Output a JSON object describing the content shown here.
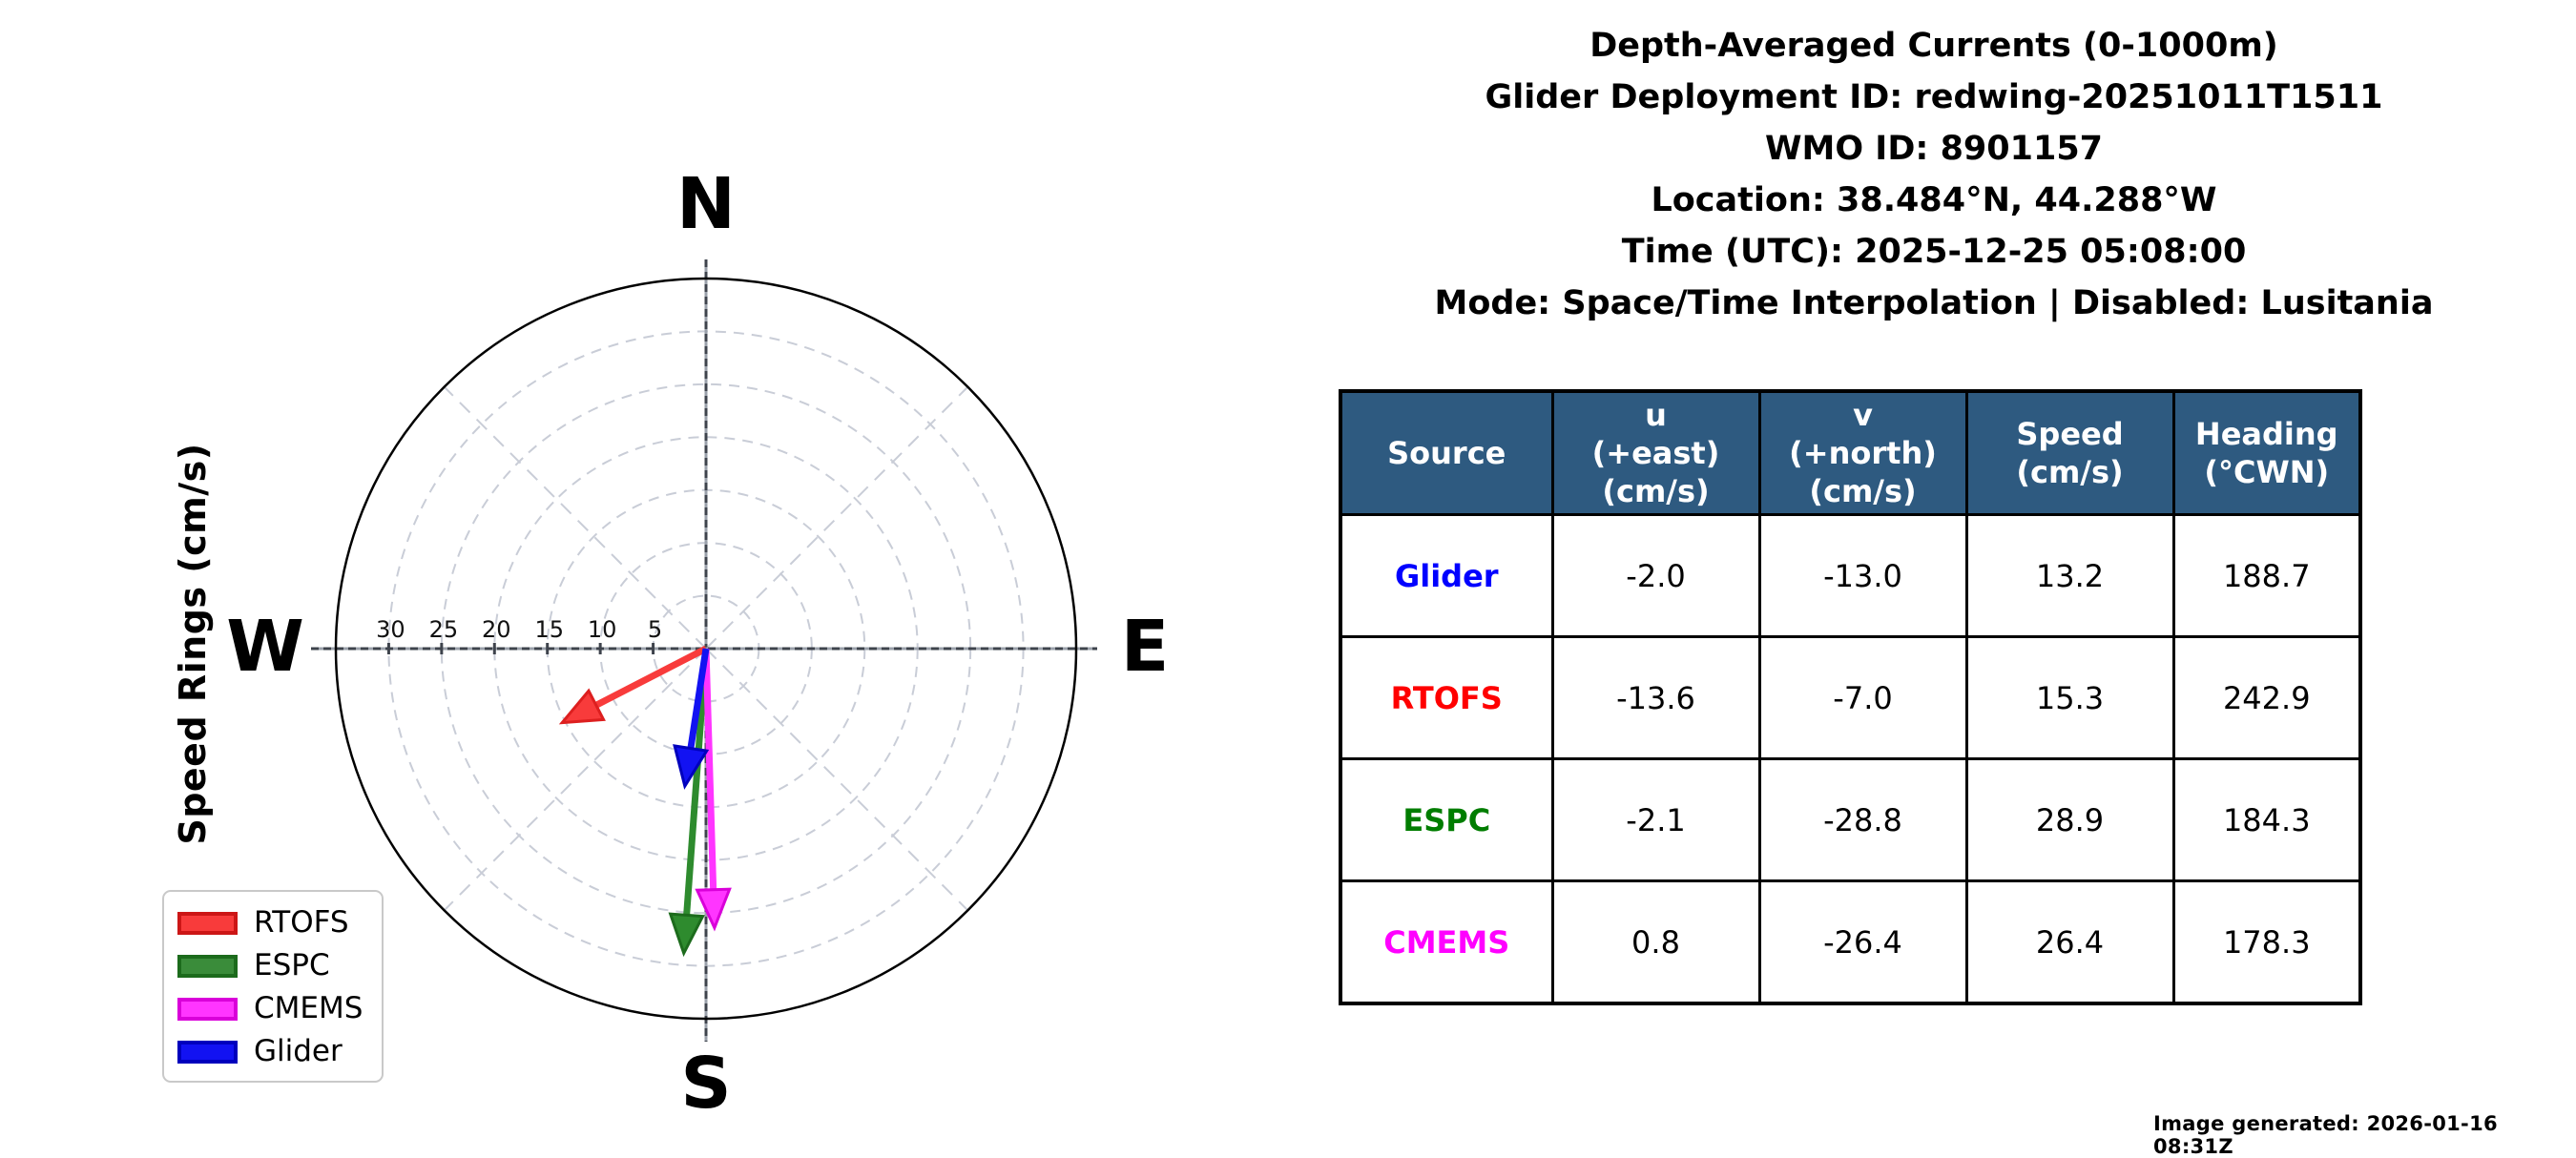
{
  "title": {
    "lines": [
      "Depth-Averaged Currents (0-1000m)",
      "Glider Deployment ID: redwing-20251011T1511",
      "WMO ID: 8901157",
      "Location: 38.484°N, 44.288°W",
      "Time (UTC): 2025-12-25 05:08:00",
      "Mode: Space/Time Interpolation | Disabled: Lusitania"
    ]
  },
  "chart_data": {
    "type": "quiver_polar",
    "axis_label": "Speed Rings (cm/s)",
    "compass_labels": {
      "north": "N",
      "east": "E",
      "south": "S",
      "west": "W"
    },
    "ring_values": [
      5,
      10,
      15,
      20,
      25,
      30
    ],
    "ring_labels": [
      "30",
      "25",
      "20",
      "15",
      "10",
      "5"
    ],
    "rmax": 35,
    "units": "cm/s",
    "series": [
      {
        "name": "RTOFS",
        "u": -13.6,
        "v": -7.0,
        "speed": 15.3,
        "heading_cwn": 242.9,
        "color": "#f83b3b",
        "edge": "#dd1f1f"
      },
      {
        "name": "ESPC",
        "u": -2.1,
        "v": -28.8,
        "speed": 28.9,
        "heading_cwn": 184.3,
        "color": "#2e8b2e",
        "edge": "#1c6b1c"
      },
      {
        "name": "CMEMS",
        "u": 0.8,
        "v": -26.4,
        "speed": 26.4,
        "heading_cwn": 178.3,
        "color": "#ff35ff",
        "edge": "#d900d9"
      },
      {
        "name": "Glider",
        "u": -2.0,
        "v": -13.0,
        "speed": 13.2,
        "heading_cwn": 188.7,
        "color": "#1212f2",
        "edge": "#0000bd"
      }
    ],
    "legend": [
      {
        "label": "RTOFS",
        "color": "#f83b3b",
        "edge": "#cc1616"
      },
      {
        "label": "ESPC",
        "color": "#3a8c3a",
        "edge": "#1c6b1c"
      },
      {
        "label": "CMEMS",
        "color": "#ff35ff",
        "edge": "#d900d9"
      },
      {
        "label": "Glider",
        "color": "#1212f2",
        "edge": "#0000bd"
      }
    ],
    "grid_color": "#c9cdd7",
    "axis_color": "#3e434c"
  },
  "table": {
    "header_bg": "#2e5a80",
    "header_fg": "#ffffff",
    "columns": [
      "Source",
      "u\n(+east)\n(cm/s)",
      "v\n(+north)\n(cm/s)",
      "Speed\n(cm/s)",
      "Heading\n(°CWN)"
    ],
    "rows": [
      {
        "source": "Glider",
        "color": "#0000ff",
        "u": "-2.0",
        "v": "-13.0",
        "speed": "13.2",
        "heading": "188.7"
      },
      {
        "source": "RTOFS",
        "color": "#ff0000",
        "u": "-13.6",
        "v": "-7.0",
        "speed": "15.3",
        "heading": "242.9"
      },
      {
        "source": "ESPC",
        "color": "#007d00",
        "u": "-2.1",
        "v": "-28.8",
        "speed": "28.9",
        "heading": "184.3"
      },
      {
        "source": "CMEMS",
        "color": "#ff00ff",
        "u": "0.8",
        "v": "-26.4",
        "speed": "26.4",
        "heading": "178.3"
      }
    ]
  },
  "footer": {
    "generated": "Image generated: 2026-01-16 08:31Z"
  }
}
